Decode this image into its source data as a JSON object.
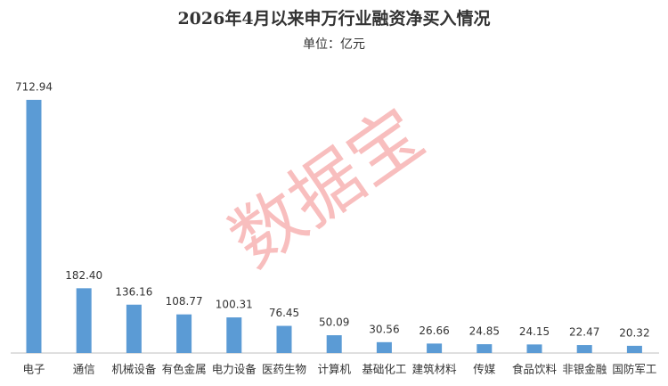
{
  "chart_data": {
    "type": "bar",
    "title": "2026年4月以来申万行业融资净买入情况",
    "subtitle": "单位：亿元",
    "watermark": "数据宝",
    "categories": [
      "电子",
      "通信",
      "机械设备",
      "有色金属",
      "电力设备",
      "医药生物",
      "计算机",
      "基础化工",
      "建筑材料",
      "传媒",
      "食品饮料",
      "非银金融",
      "国防军工"
    ],
    "values": [
      712.94,
      182.4,
      136.16,
      108.77,
      100.31,
      76.45,
      50.09,
      30.56,
      26.66,
      24.85,
      24.15,
      22.47,
      20.32
    ],
    "value_labels": [
      "712.94",
      "182.40",
      "136.16",
      "108.77",
      "100.31",
      "76.45",
      "50.09",
      "30.56",
      "26.66",
      "24.85",
      "24.15",
      "22.47",
      "20.32"
    ],
    "color": "#5b9bd5"
  }
}
